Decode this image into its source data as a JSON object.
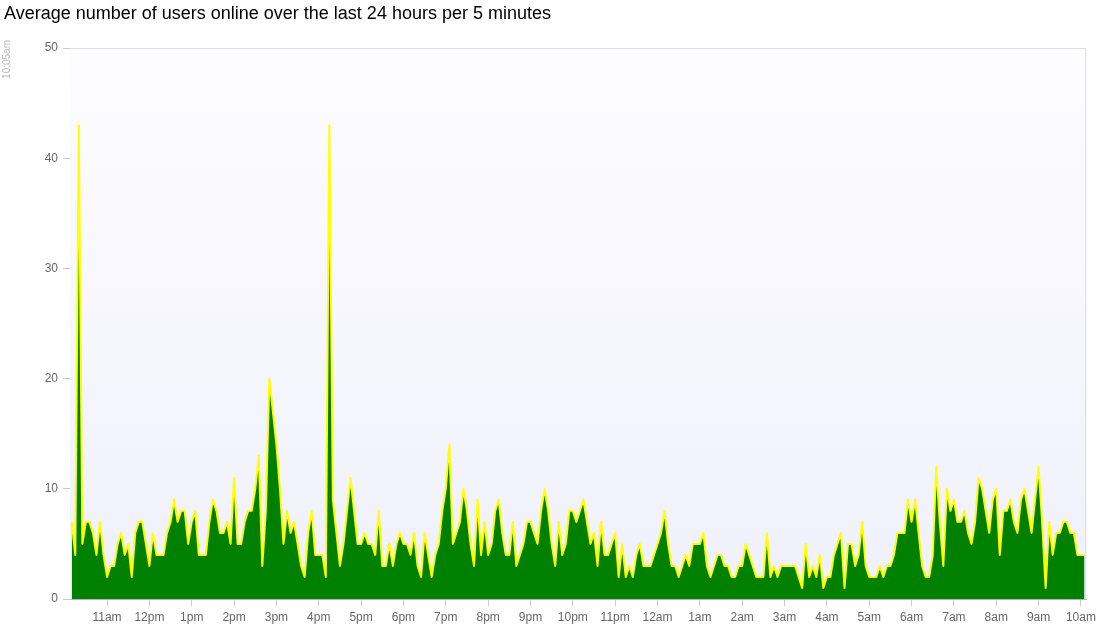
{
  "chart_data": {
    "type": "area",
    "title": "Average number of users online over the last 24 hours per 5 minutes",
    "annotations": [
      "10:05am"
    ],
    "color": "#008000",
    "ylim": [
      0,
      50
    ],
    "yticks": [
      0,
      10,
      20,
      30,
      40,
      50
    ],
    "categories": [
      null,
      null,
      null,
      null,
      null,
      null,
      null,
      null,
      null,
      null,
      "11am",
      null,
      null,
      null,
      null,
      null,
      null,
      null,
      null,
      null,
      null,
      null,
      "12pm",
      null,
      null,
      null,
      null,
      null,
      null,
      null,
      null,
      null,
      null,
      null,
      "1pm",
      null,
      null,
      null,
      null,
      null,
      null,
      null,
      null,
      null,
      null,
      null,
      "2pm",
      null,
      null,
      null,
      null,
      null,
      null,
      null,
      null,
      null,
      null,
      null,
      "3pm",
      null,
      null,
      null,
      null,
      null,
      null,
      null,
      null,
      null,
      null,
      null,
      "4pm",
      null,
      null,
      null,
      null,
      null,
      null,
      null,
      null,
      null,
      null,
      null,
      "5pm",
      null,
      null,
      null,
      null,
      null,
      null,
      null,
      null,
      null,
      null,
      null,
      "6pm",
      null,
      null,
      null,
      null,
      null,
      null,
      null,
      null,
      null,
      null,
      null,
      "7pm",
      null,
      null,
      null,
      null,
      null,
      null,
      null,
      null,
      null,
      null,
      null,
      "8pm",
      null,
      null,
      null,
      null,
      null,
      null,
      null,
      null,
      null,
      null,
      null,
      "9pm",
      null,
      null,
      null,
      null,
      null,
      null,
      null,
      null,
      null,
      null,
      null,
      "10pm",
      null,
      null,
      null,
      null,
      null,
      null,
      null,
      null,
      null,
      null,
      null,
      "11pm",
      null,
      null,
      null,
      null,
      null,
      null,
      null,
      null,
      null,
      null,
      null,
      "12am",
      null,
      null,
      null,
      null,
      null,
      null,
      null,
      null,
      null,
      null,
      null,
      "1am",
      null,
      null,
      null,
      null,
      null,
      null,
      null,
      null,
      null,
      null,
      null,
      "2am",
      null,
      null,
      null,
      null,
      null,
      null,
      null,
      null,
      null,
      null,
      null,
      "3am",
      null,
      null,
      null,
      null,
      null,
      null,
      null,
      null,
      null,
      null,
      null,
      "4am",
      null,
      null,
      null,
      null,
      null,
      null,
      null,
      null,
      null,
      null,
      null,
      "5am",
      null,
      null,
      null,
      null,
      null,
      null,
      null,
      null,
      null,
      null,
      null,
      "6am",
      null,
      null,
      null,
      null,
      null,
      null,
      null,
      null,
      null,
      null,
      null,
      "7am",
      null,
      null,
      null,
      null,
      null,
      null,
      null,
      null,
      null,
      null,
      null,
      "8am",
      null,
      null,
      null,
      null,
      null,
      null,
      null,
      null,
      null,
      null,
      null,
      "9am",
      null,
      null,
      null,
      null,
      null,
      null,
      null,
      null,
      null,
      null,
      null,
      "10am",
      null
    ],
    "values": [
      7,
      4,
      43,
      5,
      7,
      7,
      6,
      4,
      7,
      4,
      2,
      3,
      3,
      5,
      6,
      4,
      5,
      2,
      6,
      7,
      7,
      5,
      3,
      6,
      4,
      4,
      4,
      6,
      7,
      9,
      7,
      8,
      8,
      5,
      7,
      8,
      4,
      4,
      4,
      7,
      9,
      8,
      6,
      6,
      7,
      5,
      11,
      5,
      5,
      7,
      8,
      8,
      10,
      13,
      3,
      8,
      20,
      17,
      14,
      10,
      5,
      8,
      6,
      7,
      5,
      3,
      2,
      6,
      8,
      4,
      4,
      4,
      2,
      43,
      9,
      6,
      3,
      5,
      8,
      11,
      8,
      5,
      5,
      6,
      5,
      5,
      4,
      8,
      3,
      3,
      5,
      3,
      5,
      6,
      5,
      5,
      4,
      6,
      3,
      2,
      6,
      4,
      2,
      4,
      5,
      8,
      10,
      14,
      5,
      6,
      7,
      10,
      8,
      5,
      3,
      9,
      4,
      7,
      4,
      5,
      8,
      9,
      6,
      4,
      4,
      7,
      3,
      4,
      5,
      7,
      7,
      6,
      5,
      8,
      10,
      8,
      5,
      3,
      7,
      4,
      5,
      8,
      8,
      7,
      8,
      9,
      7,
      5,
      6,
      3,
      7,
      4,
      4,
      5,
      6,
      2,
      5,
      2,
      3,
      2,
      4,
      5,
      3,
      3,
      3,
      4,
      5,
      6,
      8,
      5,
      3,
      3,
      2,
      3,
      4,
      3,
      5,
      5,
      5,
      6,
      3,
      2,
      3,
      4,
      4,
      3,
      3,
      2,
      2,
      3,
      3,
      5,
      4,
      3,
      2,
      2,
      2,
      6,
      2,
      3,
      2,
      3,
      3,
      3,
      3,
      3,
      2,
      1,
      5,
      2,
      3,
      2,
      4,
      1,
      2,
      2,
      4,
      5,
      6,
      1,
      5,
      5,
      3,
      4,
      7,
      3,
      2,
      2,
      2,
      3,
      2,
      3,
      3,
      4,
      6,
      6,
      6,
      9,
      7,
      9,
      6,
      3,
      2,
      2,
      4,
      12,
      7,
      3,
      10,
      8,
      9,
      7,
      7,
      8,
      6,
      5,
      7,
      11,
      10,
      8,
      6,
      9,
      10,
      4,
      8,
      8,
      9,
      7,
      6,
      9,
      10,
      8,
      6,
      9,
      12,
      7,
      1,
      7,
      4,
      6,
      6,
      7,
      7,
      6,
      6,
      4,
      4,
      4
    ]
  }
}
